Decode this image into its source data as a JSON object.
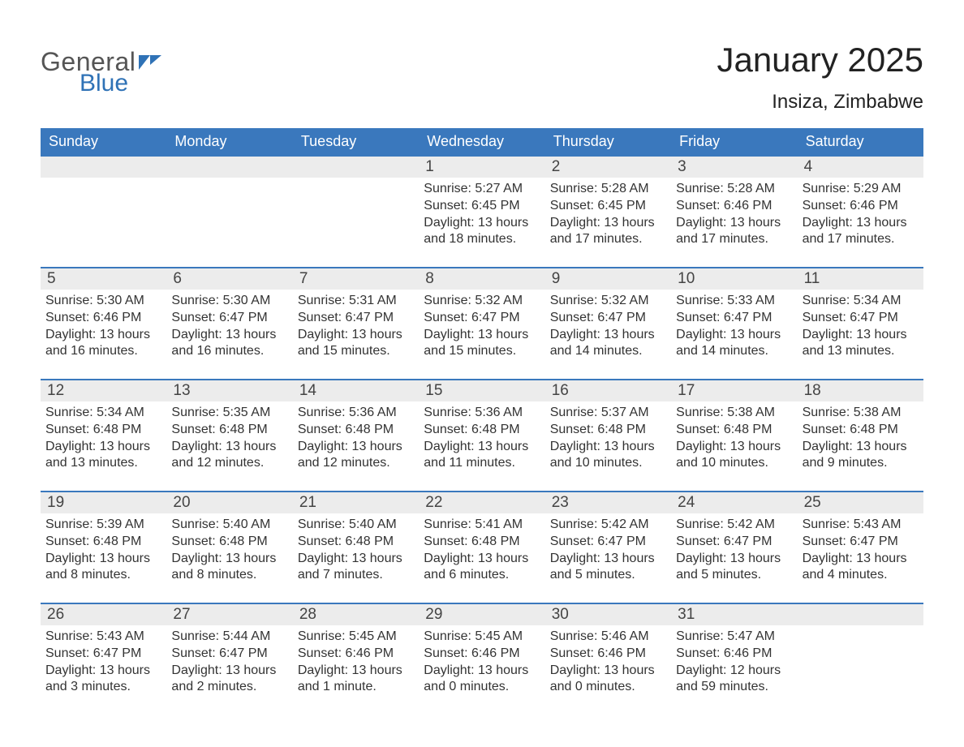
{
  "brand": {
    "word1": "General",
    "word2": "Blue"
  },
  "title": "January 2025",
  "location": "Insiza, Zimbabwe",
  "colors": {
    "header_bg": "#3a78bd",
    "header_text": "#ffffff",
    "daynum_bg": "#ececec",
    "row_border": "#3a78bd",
    "body_text": "#333333",
    "logo_gray": "#555555",
    "logo_blue": "#2f72b6",
    "background": "#ffffff"
  },
  "fonts": {
    "title_size": 42,
    "location_size": 24,
    "weekday_size": 18,
    "daynum_size": 19,
    "detail_size": 16
  },
  "weekdays": [
    "Sunday",
    "Monday",
    "Tuesday",
    "Wednesday",
    "Thursday",
    "Friday",
    "Saturday"
  ],
  "weeks": [
    [
      null,
      null,
      null,
      {
        "day": 1,
        "sunrise": "5:27 AM",
        "sunset": "6:45 PM",
        "daylight": "13 hours and 18 minutes."
      },
      {
        "day": 2,
        "sunrise": "5:28 AM",
        "sunset": "6:45 PM",
        "daylight": "13 hours and 17 minutes."
      },
      {
        "day": 3,
        "sunrise": "5:28 AM",
        "sunset": "6:46 PM",
        "daylight": "13 hours and 17 minutes."
      },
      {
        "day": 4,
        "sunrise": "5:29 AM",
        "sunset": "6:46 PM",
        "daylight": "13 hours and 17 minutes."
      }
    ],
    [
      {
        "day": 5,
        "sunrise": "5:30 AM",
        "sunset": "6:46 PM",
        "daylight": "13 hours and 16 minutes."
      },
      {
        "day": 6,
        "sunrise": "5:30 AM",
        "sunset": "6:47 PM",
        "daylight": "13 hours and 16 minutes."
      },
      {
        "day": 7,
        "sunrise": "5:31 AM",
        "sunset": "6:47 PM",
        "daylight": "13 hours and 15 minutes."
      },
      {
        "day": 8,
        "sunrise": "5:32 AM",
        "sunset": "6:47 PM",
        "daylight": "13 hours and 15 minutes."
      },
      {
        "day": 9,
        "sunrise": "5:32 AM",
        "sunset": "6:47 PM",
        "daylight": "13 hours and 14 minutes."
      },
      {
        "day": 10,
        "sunrise": "5:33 AM",
        "sunset": "6:47 PM",
        "daylight": "13 hours and 14 minutes."
      },
      {
        "day": 11,
        "sunrise": "5:34 AM",
        "sunset": "6:47 PM",
        "daylight": "13 hours and 13 minutes."
      }
    ],
    [
      {
        "day": 12,
        "sunrise": "5:34 AM",
        "sunset": "6:48 PM",
        "daylight": "13 hours and 13 minutes."
      },
      {
        "day": 13,
        "sunrise": "5:35 AM",
        "sunset": "6:48 PM",
        "daylight": "13 hours and 12 minutes."
      },
      {
        "day": 14,
        "sunrise": "5:36 AM",
        "sunset": "6:48 PM",
        "daylight": "13 hours and 12 minutes."
      },
      {
        "day": 15,
        "sunrise": "5:36 AM",
        "sunset": "6:48 PM",
        "daylight": "13 hours and 11 minutes."
      },
      {
        "day": 16,
        "sunrise": "5:37 AM",
        "sunset": "6:48 PM",
        "daylight": "13 hours and 10 minutes."
      },
      {
        "day": 17,
        "sunrise": "5:38 AM",
        "sunset": "6:48 PM",
        "daylight": "13 hours and 10 minutes."
      },
      {
        "day": 18,
        "sunrise": "5:38 AM",
        "sunset": "6:48 PM",
        "daylight": "13 hours and 9 minutes."
      }
    ],
    [
      {
        "day": 19,
        "sunrise": "5:39 AM",
        "sunset": "6:48 PM",
        "daylight": "13 hours and 8 minutes."
      },
      {
        "day": 20,
        "sunrise": "5:40 AM",
        "sunset": "6:48 PM",
        "daylight": "13 hours and 8 minutes."
      },
      {
        "day": 21,
        "sunrise": "5:40 AM",
        "sunset": "6:48 PM",
        "daylight": "13 hours and 7 minutes."
      },
      {
        "day": 22,
        "sunrise": "5:41 AM",
        "sunset": "6:48 PM",
        "daylight": "13 hours and 6 minutes."
      },
      {
        "day": 23,
        "sunrise": "5:42 AM",
        "sunset": "6:47 PM",
        "daylight": "13 hours and 5 minutes."
      },
      {
        "day": 24,
        "sunrise": "5:42 AM",
        "sunset": "6:47 PM",
        "daylight": "13 hours and 5 minutes."
      },
      {
        "day": 25,
        "sunrise": "5:43 AM",
        "sunset": "6:47 PM",
        "daylight": "13 hours and 4 minutes."
      }
    ],
    [
      {
        "day": 26,
        "sunrise": "5:43 AM",
        "sunset": "6:47 PM",
        "daylight": "13 hours and 3 minutes."
      },
      {
        "day": 27,
        "sunrise": "5:44 AM",
        "sunset": "6:47 PM",
        "daylight": "13 hours and 2 minutes."
      },
      {
        "day": 28,
        "sunrise": "5:45 AM",
        "sunset": "6:46 PM",
        "daylight": "13 hours and 1 minute."
      },
      {
        "day": 29,
        "sunrise": "5:45 AM",
        "sunset": "6:46 PM",
        "daylight": "13 hours and 0 minutes."
      },
      {
        "day": 30,
        "sunrise": "5:46 AM",
        "sunset": "6:46 PM",
        "daylight": "13 hours and 0 minutes."
      },
      {
        "day": 31,
        "sunrise": "5:47 AM",
        "sunset": "6:46 PM",
        "daylight": "12 hours and 59 minutes."
      },
      null
    ]
  ],
  "labels": {
    "sunrise": "Sunrise:",
    "sunset": "Sunset:",
    "daylight": "Daylight:"
  }
}
